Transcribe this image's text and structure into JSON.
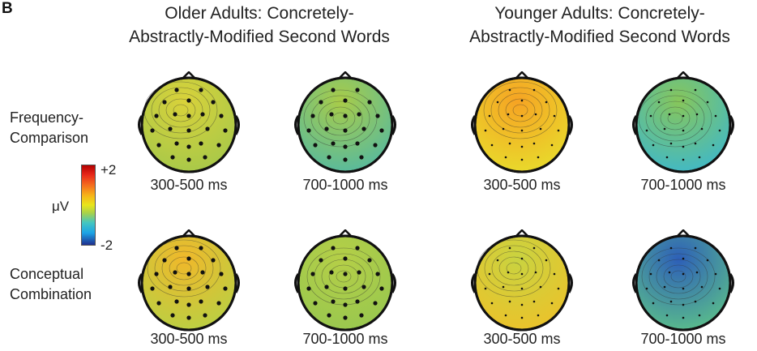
{
  "panel_letter": "B",
  "groups": [
    {
      "title_line1": "Older Adults: Concretely-",
      "title_line2": "Abstractly-Modified Second Words"
    },
    {
      "title_line1": "Younger Adults: Concretely-",
      "title_line2": "Abstractly-Modified Second Words"
    }
  ],
  "rows": [
    {
      "label_line1": "Frequency-",
      "label_line2": "Comparison"
    },
    {
      "label_line1": "Conceptual",
      "label_line2": "Combination"
    }
  ],
  "times": [
    "300-500 ms",
    "700-1000 ms",
    "300-500 ms",
    "700-1000 ms",
    "300-500 ms",
    "700-1000 ms",
    "300-500 ms",
    "700-1000 ms"
  ],
  "colorbar": {
    "max_label": "+2",
    "min_label": "-2",
    "unit": "μV"
  },
  "head_colors": [
    [
      "#d9d23a",
      "#a6c84a"
    ],
    [
      "#a9cc48",
      "#55b9a0"
    ],
    [
      "#f6a323",
      "#e8dc2c"
    ],
    [
      "#87c65a",
      "#3fb8c9"
    ],
    [
      "#f0b82a",
      "#b9d044"
    ],
    [
      "#b5cf47",
      "#98c74f"
    ],
    [
      "#c9d340",
      "#ecc22a"
    ],
    [
      "#2d5fb8",
      "#5bbf8a"
    ]
  ]
}
